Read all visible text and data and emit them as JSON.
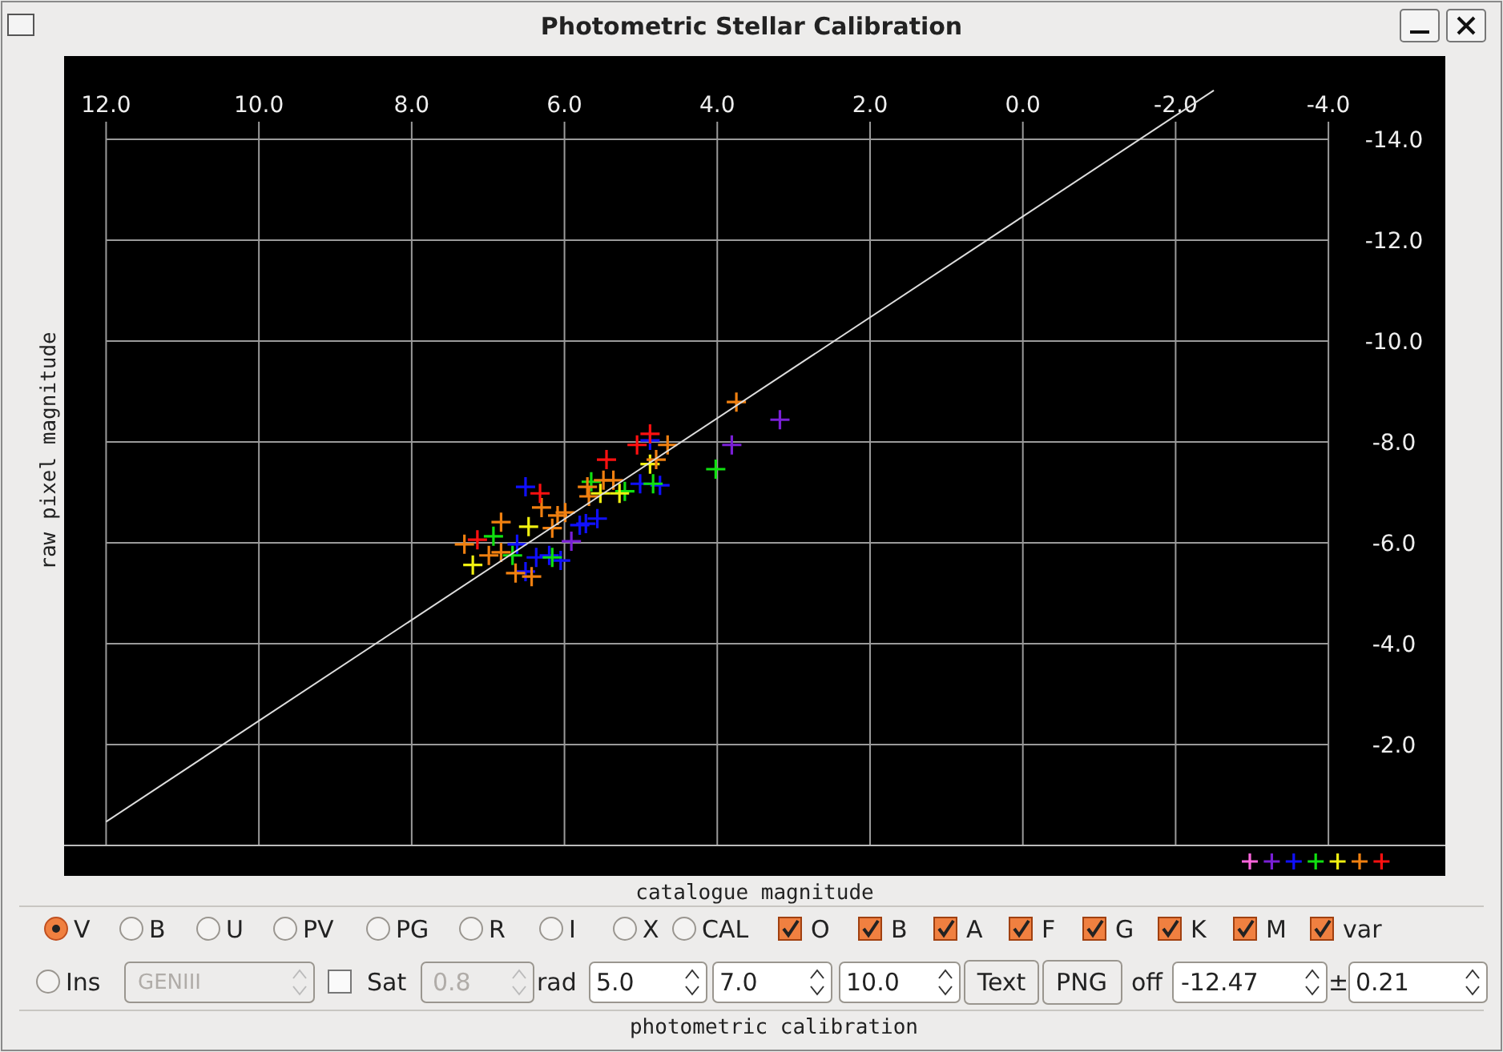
{
  "chart_data": {
    "type": "scatter",
    "title": "Photometric Stellar Calibration",
    "xlabel": "catalogue magnitude",
    "ylabel": "raw pixel magnitude",
    "xlim": [
      12.55,
      -5.53
    ],
    "ylim": [
      0,
      -15.65
    ],
    "xticks": [
      {
        "value": 12,
        "label": "12.0"
      },
      {
        "value": 10,
        "label": "10.0"
      },
      {
        "value": 8,
        "label": "8.0"
      },
      {
        "value": 6,
        "label": "6.0"
      },
      {
        "value": 4,
        "label": "4.0"
      },
      {
        "value": 2,
        "label": "2.0"
      },
      {
        "value": 0,
        "label": "0.0"
      },
      {
        "value": -2,
        "label": "-2.0"
      },
      {
        "value": -4,
        "label": "-4.0"
      }
    ],
    "yticks": [
      {
        "value": -14,
        "label": "-14.0"
      },
      {
        "value": -12,
        "label": "-12.0"
      },
      {
        "value": -10,
        "label": "-10.0"
      },
      {
        "value": -8,
        "label": "-8.0"
      },
      {
        "value": -6,
        "label": "-6.0"
      },
      {
        "value": -4,
        "label": "-4.0"
      },
      {
        "value": -2,
        "label": "-2.0"
      }
    ],
    "grid": true,
    "marker": "cross",
    "series": [
      {
        "color": "#7a1fd6",
        "x": [
          3.18,
          3.81,
          5.91
        ],
        "values": [
          -8.44,
          -7.94,
          -6.03
        ]
      },
      {
        "color": "#1010ff",
        "x": [
          6.51,
          5.72,
          5.57,
          5.8,
          6.2,
          6.37,
          6.62,
          6.05,
          6.51,
          5.01,
          4.75,
          4.88
        ],
        "values": [
          -7.11,
          -6.38,
          -6.48,
          -6.35,
          -5.75,
          -5.71,
          -5.97,
          -5.65,
          -5.43,
          -7.17,
          -7.14,
          -8.03
        ]
      },
      {
        "color": "#10e010",
        "x": [
          4.02,
          5.65,
          4.84,
          5.21,
          6.93,
          6.16,
          6.68
        ],
        "values": [
          -7.46,
          -7.21,
          -7.17,
          -7.02,
          -6.13,
          -5.71,
          -5.75
        ]
      },
      {
        "color": "#f0f010",
        "x": [
          4.88,
          5.53,
          5.28,
          6.47,
          7.2
        ],
        "values": [
          -7.56,
          -6.98,
          -6.98,
          -6.32,
          -5.56
        ]
      },
      {
        "color": "#f08010",
        "x": [
          3.75,
          4.65,
          5.49,
          5.36,
          5.68,
          6.3,
          6.09,
          6.83,
          6.16,
          7.31,
          6.99,
          6.83,
          6.64,
          6.43,
          4.8,
          5.99,
          5.7
        ],
        "values": [
          -8.79,
          -7.94,
          -7.24,
          -7.24,
          -6.92,
          -6.7,
          -6.54,
          -6.41,
          -6.29,
          -5.97,
          -5.75,
          -5.81,
          -5.4,
          -5.33,
          -7.65,
          -6.6,
          -7.11
        ]
      },
      {
        "color": "#ff1010",
        "x": [
          4.88,
          5.45,
          5.05,
          6.32,
          7.14
        ],
        "values": [
          -8.16,
          -7.65,
          -7.94,
          -6.98,
          -6.06
        ]
      },
      {
        "type": "line",
        "marker": "none",
        "color": "#dddddd",
        "x": [
          12,
          -2.5
        ],
        "values": [
          -0.47,
          -14.97
        ]
      }
    ],
    "annotations": [
      "V",
      "B",
      "U",
      "PV",
      "PG",
      "R",
      "I",
      "X",
      "CAL",
      "O",
      "B",
      "A",
      "F",
      "G",
      "K",
      "M",
      "var",
      "Ins",
      "GENIII",
      "Sat",
      "0.8",
      "rad",
      "5.0",
      "7.0",
      "10.0",
      "Text",
      "PNG",
      "off",
      "-12.47",
      "±",
      "0.21",
      "photometric calibration"
    ]
  }
}
